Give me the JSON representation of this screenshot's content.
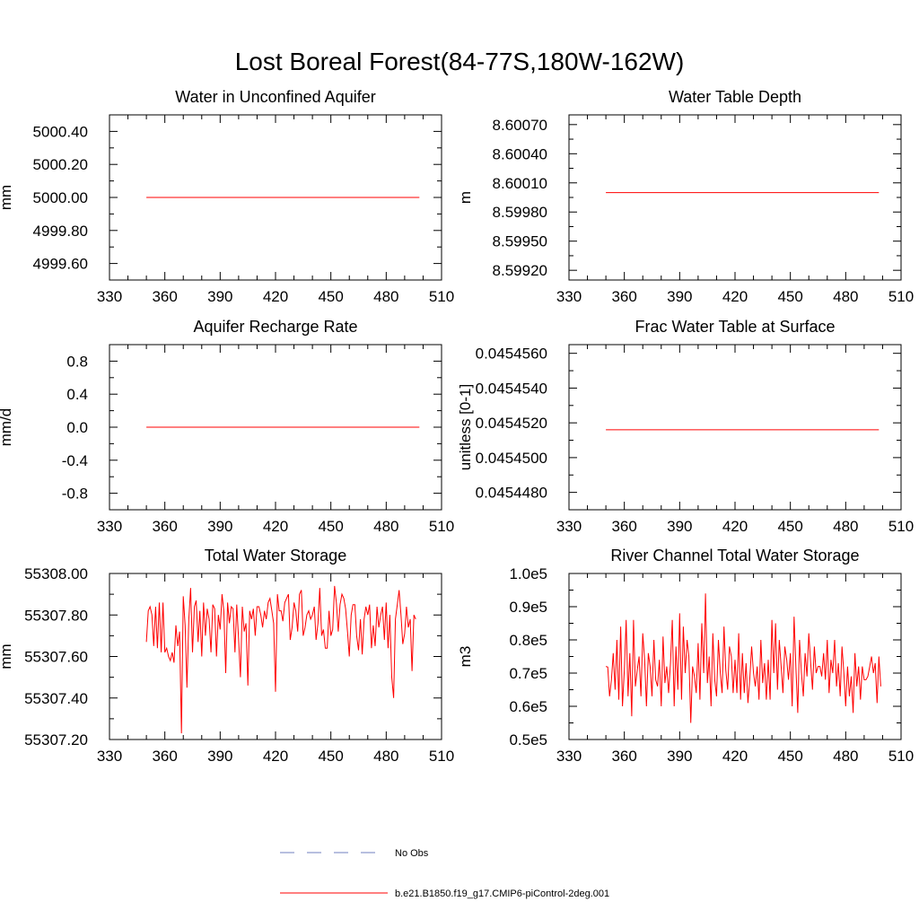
{
  "figure": {
    "title": "Lost Boreal Forest(84-77S,180W-162W)"
  },
  "legend": {
    "entries": [
      {
        "label": "No Obs",
        "color": "#6f7fbf",
        "style": "dashed"
      },
      {
        "label": "b.e21.B1850.f19_g17.CMIP6-piControl-2deg.001",
        "color": "#ff0000",
        "style": "solid"
      }
    ]
  },
  "chart_data": [
    {
      "type": "line",
      "title": "Water in Unconfined Aquifer",
      "ylabel": "mm",
      "xlim": [
        330,
        510
      ],
      "ylim": [
        4999.5,
        5000.5
      ],
      "x_ticks": [
        "330",
        "360",
        "390",
        "420",
        "450",
        "480",
        "510"
      ],
      "y_ticks": [
        "5000.40",
        "5000.20",
        "5000.00",
        "4999.80",
        "4999.60"
      ],
      "series": [
        {
          "color": "#ff0000",
          "x_start": 350,
          "x_step": 1,
          "values": [
            5000.0,
            5000.0
          ]
        }
      ]
    },
    {
      "type": "line",
      "title": "Water Table Depth",
      "ylabel": "m",
      "xlim": [
        330,
        510
      ],
      "ylim": [
        8.5991,
        8.6008
      ],
      "x_ticks": [
        "330",
        "360",
        "390",
        "420",
        "450",
        "480",
        "510"
      ],
      "y_ticks": [
        "8.60070",
        "8.60040",
        "8.60010",
        "8.59980",
        "8.59950",
        "8.59920"
      ],
      "series": [
        {
          "color": "#ff0000",
          "x_start": 350,
          "x_step": 1,
          "values": [
            8.6,
            8.6
          ]
        }
      ]
    },
    {
      "type": "line",
      "title": "Aquifer Recharge Rate",
      "ylabel": "mm/d",
      "xlim": [
        330,
        510
      ],
      "ylim": [
        -1.0,
        1.0
      ],
      "x_ticks": [
        "330",
        "360",
        "390",
        "420",
        "450",
        "480",
        "510"
      ],
      "y_ticks": [
        "0.8",
        "0.4",
        "0.0",
        "-0.4",
        "-0.8"
      ],
      "series": [
        {
          "color": "#ff0000",
          "x_start": 350,
          "x_step": 1,
          "values": [
            0.0,
            0.0
          ]
        }
      ]
    },
    {
      "type": "line",
      "title": "Frac Water Table at Surface",
      "ylabel": "unitless [0-1]",
      "xlim": [
        330,
        510
      ],
      "ylim": [
        0.045447,
        0.0454565
      ],
      "x_ticks": [
        "330",
        "360",
        "390",
        "420",
        "450",
        "480",
        "510"
      ],
      "y_ticks": [
        "0.0454560",
        "0.0454540",
        "0.0454520",
        "0.0454500",
        "0.0454480"
      ],
      "series": [
        {
          "color": "#ff0000",
          "x_start": 350,
          "x_step": 1,
          "values": [
            0.0454516,
            0.0454516
          ]
        }
      ]
    },
    {
      "type": "line",
      "title": "Total Water Storage",
      "ylabel": "mm",
      "xlim": [
        330,
        510
      ],
      "ylim": [
        55307.2,
        55308.0
      ],
      "x_ticks": [
        "330",
        "360",
        "390",
        "420",
        "450",
        "480",
        "510"
      ],
      "y_ticks": [
        "55308.00",
        "55307.80",
        "55307.60",
        "55307.40",
        "55307.20"
      ],
      "series": [
        {
          "color": "#ff0000",
          "x_start": 350,
          "x_step": 1,
          "values": [
            55307.67,
            55307.82,
            55307.84,
            55307.8,
            55307.65,
            55307.84,
            55307.64,
            55307.86,
            55307.62,
            55307.86,
            55307.62,
            55307.64,
            55307.6,
            55307.58,
            55307.62,
            55307.57,
            55307.75,
            55307.65,
            55307.72,
            55307.23,
            55307.89,
            55307.75,
            55307.45,
            55307.78,
            55307.93,
            55307.62,
            55307.84,
            55307.87,
            55307.67,
            55307.82,
            55307.6,
            55307.86,
            55307.7,
            55307.83,
            55307.78,
            55307.62,
            55307.85,
            55307.83,
            55307.6,
            55307.8,
            55307.73,
            55307.9,
            55307.82,
            55307.52,
            55307.86,
            55307.76,
            55307.84,
            55307.83,
            55307.62,
            55307.85,
            55307.68,
            55307.5,
            55307.84,
            55307.72,
            55307.76,
            55307.46,
            55307.82,
            55307.78,
            55307.83,
            55307.7,
            55307.84,
            55307.84,
            55307.8,
            55307.74,
            55307.82,
            55307.78,
            55307.86,
            55307.88,
            55307.82,
            55307.76,
            55307.43,
            55307.9,
            55307.82,
            55307.82,
            55307.77,
            55307.86,
            55307.88,
            55307.9,
            55307.68,
            55307.74,
            55307.86,
            55307.82,
            55307.72,
            55307.9,
            55307.92,
            55307.7,
            55307.74,
            55307.8,
            55307.82,
            55307.78,
            55307.8,
            55307.84,
            55307.68,
            55307.76,
            55307.93,
            55307.7,
            55307.73,
            55307.64,
            55307.64,
            55307.82,
            55307.7,
            55307.73,
            55307.94,
            55307.86,
            55307.72,
            55307.85,
            55307.9,
            55307.88,
            55307.83,
            55307.72,
            55307.6,
            55307.8,
            55307.85,
            55307.85,
            55307.7,
            55307.63,
            55307.78,
            55307.61,
            55307.78,
            55307.84,
            55307.8,
            55307.85,
            55307.64,
            55307.75,
            55307.65,
            55307.84,
            55307.74,
            55307.8,
            55307.84,
            55307.68,
            55307.86,
            55307.64,
            55307.8,
            55307.5,
            55307.4,
            55307.78,
            55307.85,
            55307.92,
            55307.8,
            55307.66,
            55307.71,
            55307.84,
            55307.74,
            55307.78,
            55307.53,
            55307.8,
            55307.78
          ]
        }
      ]
    },
    {
      "type": "line",
      "title": "River Channel Total Water Storage",
      "ylabel": "m3",
      "xlim": [
        330,
        510
      ],
      "ylim": [
        50000,
        100000
      ],
      "x_ticks": [
        "330",
        "360",
        "390",
        "420",
        "450",
        "480",
        "510"
      ],
      "y_ticks": [
        "1.0e5",
        "0.9e5",
        "0.8e5",
        "0.7e5",
        "0.6e5",
        "0.5e5"
      ],
      "series": [
        {
          "color": "#ff0000",
          "x_start": 350,
          "x_step": 1,
          "values": [
            72000,
            71800,
            63000,
            68000,
            76000,
            65000,
            80000,
            62000,
            84000,
            60000,
            71000,
            86000,
            63000,
            76000,
            57000,
            86000,
            66000,
            71000,
            75000,
            63000,
            82000,
            74000,
            60000,
            76000,
            72000,
            63000,
            80000,
            68000,
            66000,
            74000,
            60000,
            81000,
            67000,
            72000,
            64000,
            73000,
            86000,
            60000,
            78000,
            65000,
            88000,
            62000,
            84000,
            70000,
            80000,
            75000,
            55000,
            72000,
            69000,
            64000,
            79000,
            62000,
            85000,
            70000,
            94000,
            67000,
            75000,
            60000,
            82000,
            68000,
            63000,
            80000,
            70000,
            64000,
            84000,
            71000,
            65000,
            78000,
            75000,
            64000,
            74000,
            64000,
            82000,
            62000,
            76000,
            64000,
            73000,
            61000,
            68000,
            78000,
            70000,
            66000,
            72000,
            62000,
            80000,
            67000,
            73000,
            62000,
            74000,
            62000,
            86000,
            70000,
            85000,
            65000,
            80000,
            72000,
            64000,
            78000,
            74000,
            68000,
            76000,
            60000,
            87000,
            72000,
            58000,
            80000,
            70000,
            63000,
            76000,
            69000,
            82000,
            73000,
            65000,
            78000,
            70000,
            72000,
            72000,
            69000,
            76000,
            68000,
            80000,
            64000,
            74000,
            70000,
            80000,
            66000,
            73000,
            63000,
            78000,
            70000,
            60000,
            72000,
            63000,
            69000,
            58000,
            76000,
            66000,
            72000,
            62000,
            72000,
            68000,
            68000,
            69000,
            72000,
            75000,
            70000,
            73000,
            61000,
            75000,
            66000
          ]
        }
      ]
    }
  ]
}
